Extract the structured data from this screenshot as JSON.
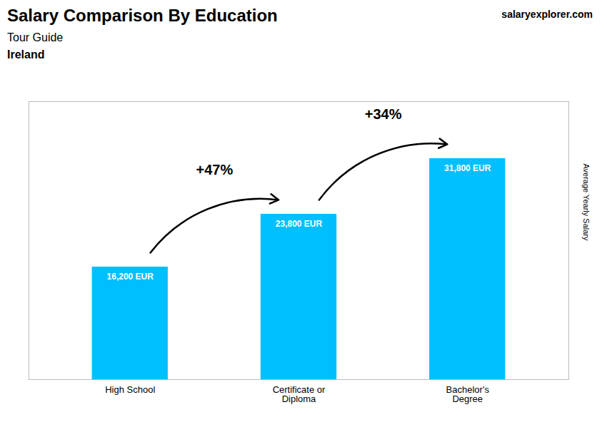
{
  "chart_data": {
    "type": "bar",
    "title": "Salary Comparison By Education",
    "subtitle": "Tour Guide",
    "country": "Ireland",
    "source": "salaryexplorer.com",
    "ylabel": "Average Yearly Salary",
    "categories": [
      "High School",
      "Certificate or\nDiploma",
      "Bachelor's\nDegree"
    ],
    "values": [
      16200,
      23800,
      31800
    ],
    "value_labels": [
      "16,200 EUR",
      "23,800 EUR",
      "31,800 EUR"
    ],
    "data_labels": true,
    "annotations": [
      "+47%",
      "+34%"
    ],
    "color": "#00bfff",
    "ylim": [
      0,
      40000
    ],
    "tick_labels": "x"
  }
}
